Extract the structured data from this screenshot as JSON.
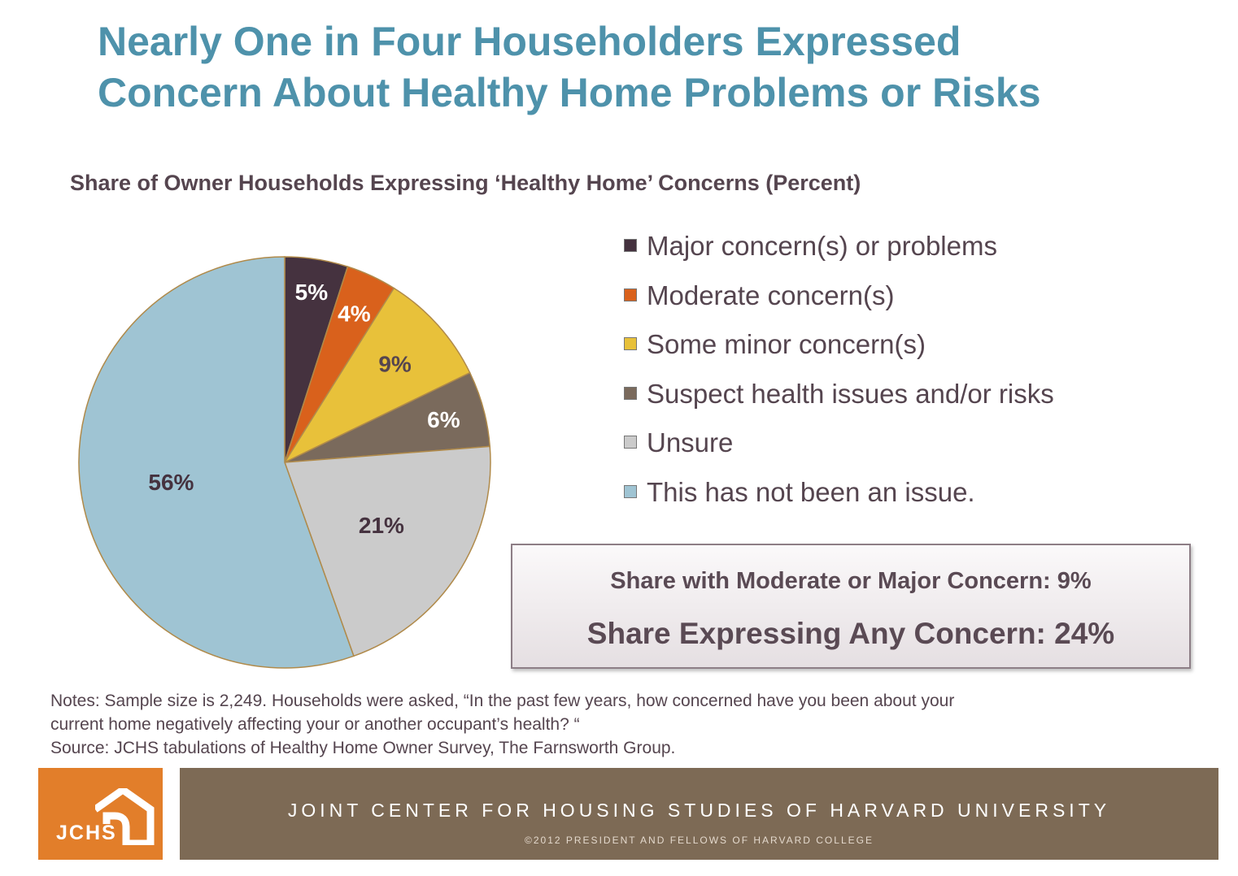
{
  "slide": {
    "title_line1": "Nearly One in Four Householders Expressed",
    "title_line2": "Concern About Healthy Home Problems or Risks"
  },
  "chart_data": {
    "type": "pie",
    "title": "Share of Owner Households Expressing ‘Healthy Home’ Concerns (Percent)",
    "slices": [
      {
        "label": "Major concern(s) or problems",
        "value": 5,
        "display": "5%",
        "color": "#45323f",
        "label_color": "#ffffff"
      },
      {
        "label": "Moderate concern(s)",
        "value": 4,
        "display": "4%",
        "color": "#d9611c",
        "label_color": "#ffffff"
      },
      {
        "label": "Some minor concern(s)",
        "value": 9,
        "display": "9%",
        "color": "#e8c13a",
        "label_color": "#55454f"
      },
      {
        "label": "Suspect health issues and/or risks",
        "value": 6,
        "display": "6%",
        "color": "#7a6a5c",
        "label_color": "#ffffff"
      },
      {
        "label": "Unsure",
        "value": 21,
        "display": "21%",
        "color": "#cbcbcb",
        "label_color": "#45323f"
      },
      {
        "label": "This has not been an issue.",
        "value": 56,
        "display": "56%",
        "color": "#9fc4d3",
        "label_color": "#45323f"
      }
    ],
    "legend_position": "right",
    "slice_border_color": "#b08a4a"
  },
  "summary": {
    "line1": "Share with Moderate or Major Concern:  9%",
    "line2": "Share Expressing Any Concern: 24%"
  },
  "notes": {
    "line1": "Notes: Sample size is 2,249.  Households were asked, “In the past few years, how concerned have you been about your",
    "line2": "current home negatively affecting your or another occupant’s health? “",
    "line3": "Source: JCHS tabulations of Healthy Home Owner Survey, The Farnsworth Group."
  },
  "footer": {
    "logo_text": "JCHS",
    "org_name": "JOINT CENTER FOR HOUSING STUDIES OF HARVARD UNIVERSITY",
    "copyright": "©2012 PRESIDENT AND FELLOWS OF HARVARD COLLEGE",
    "logo_color": "#e27e2a",
    "band_color": "#7d6a55"
  }
}
